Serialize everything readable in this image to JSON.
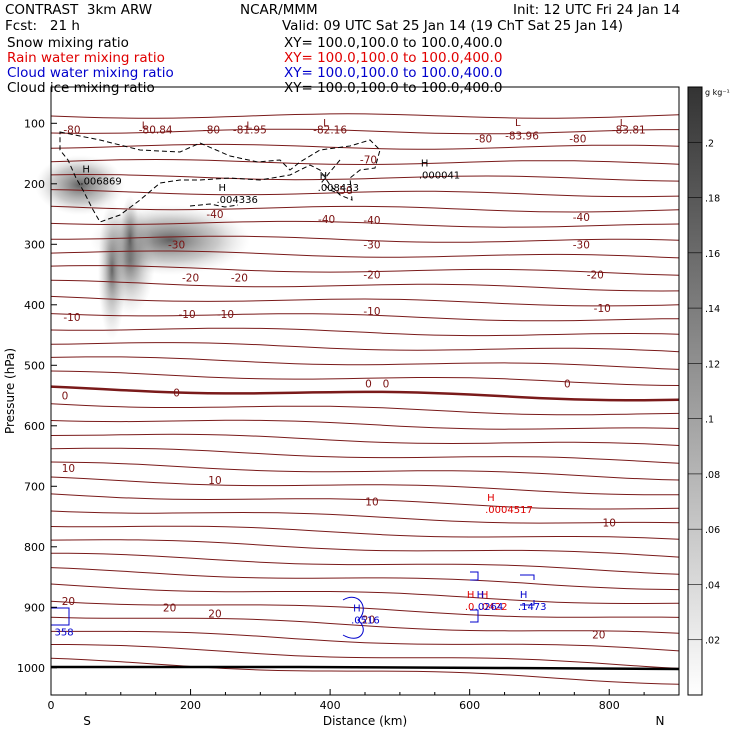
{
  "header": {
    "title_left": "CONTRAST  3km ARW",
    "center": "NCAR/MMM",
    "init": "Init: 12 UTC Fri 24 Jan 14",
    "fcst": "Fcst:   21 h",
    "valid": "Valid: 09 UTC Sat 25 Jan 14 (19 ChT Sat 25 Jan 14)",
    "fields": [
      {
        "label": "Snow mixing ratio",
        "xy": "XY= 100.0,100.0 to 100.0,400.0",
        "color": "#000000"
      },
      {
        "label": "Rain water mixing ratio",
        "xy": "XY= 100.0,100.0 to 100.0,400.0",
        "color": "#e00000"
      },
      {
        "label": "Cloud water mixing ratio",
        "xy": "XY= 100.0,100.0 to 100.0,400.0",
        "color": "#0000cc"
      },
      {
        "label": "Cloud ice mixing ratio",
        "xy": "XY= 100.0,100.0 to 100.0,400.0",
        "color": "#000000"
      }
    ]
  },
  "chart_data": {
    "type": "contour",
    "xlabel": "Distance (km)",
    "ylabel": "Pressure (hPa)",
    "xlim": [
      0,
      900
    ],
    "ylim": [
      1045,
      40
    ],
    "x_ticks": [
      0,
      200,
      400,
      600,
      800
    ],
    "y_ticks": [
      100,
      200,
      300,
      400,
      500,
      600,
      700,
      800,
      900,
      1000
    ],
    "x_end_labels": {
      "left": "S",
      "right": "N"
    },
    "colorbar": {
      "unit": "g kg⁻¹",
      "ticks": [
        ".02",
        ".04",
        ".06",
        ".08",
        ".1",
        ".12",
        ".14",
        ".16",
        ".18",
        ".2"
      ]
    },
    "temperature_labels": [
      {
        "x": 30,
        "p": 110,
        "text": "-80"
      },
      {
        "x": 150,
        "p": 110,
        "text": "-80.84"
      },
      {
        "x": 230,
        "p": 110,
        "text": "-80"
      },
      {
        "x": 285,
        "p": 110,
        "text": "-81.95"
      },
      {
        "x": 400,
        "p": 110,
        "text": "-82.16"
      },
      {
        "x": 620,
        "p": 125,
        "text": "-80"
      },
      {
        "x": 675,
        "p": 120,
        "text": "-83.96"
      },
      {
        "x": 755,
        "p": 125,
        "text": "-80"
      },
      {
        "x": 828,
        "p": 110,
        "text": "-83.81"
      },
      {
        "x": 455,
        "p": 160,
        "text": "-70"
      },
      {
        "x": 420,
        "p": 210,
        "text": "-50"
      },
      {
        "x": 235,
        "p": 250,
        "text": "-40"
      },
      {
        "x": 395,
        "p": 258,
        "text": "-40"
      },
      {
        "x": 460,
        "p": 260,
        "text": "-40"
      },
      {
        "x": 760,
        "p": 255,
        "text": "-40"
      },
      {
        "x": 180,
        "p": 300,
        "text": "-30"
      },
      {
        "x": 460,
        "p": 300,
        "text": "-30"
      },
      {
        "x": 760,
        "p": 300,
        "text": "-30"
      },
      {
        "x": 200,
        "p": 355,
        "text": "-20"
      },
      {
        "x": 270,
        "p": 355,
        "text": "-20"
      },
      {
        "x": 460,
        "p": 350,
        "text": "-20"
      },
      {
        "x": 780,
        "p": 350,
        "text": "-20"
      },
      {
        "x": 30,
        "p": 420,
        "text": "-10"
      },
      {
        "x": 195,
        "p": 415,
        "text": "-10"
      },
      {
        "x": 250,
        "p": 415,
        "text": "-10"
      },
      {
        "x": 460,
        "p": 410,
        "text": "-10"
      },
      {
        "x": 790,
        "p": 405,
        "text": "-10"
      },
      {
        "x": 20,
        "p": 550,
        "text": "0"
      },
      {
        "x": 180,
        "p": 545,
        "text": "0"
      },
      {
        "x": 455,
        "p": 530,
        "text": "0"
      },
      {
        "x": 480,
        "p": 530,
        "text": "0"
      },
      {
        "x": 740,
        "p": 530,
        "text": "0"
      },
      {
        "x": 25,
        "p": 670,
        "text": "10"
      },
      {
        "x": 235,
        "p": 690,
        "text": "10"
      },
      {
        "x": 460,
        "p": 725,
        "text": "10"
      },
      {
        "x": 800,
        "p": 760,
        "text": "10"
      },
      {
        "x": 25,
        "p": 890,
        "text": "20"
      },
      {
        "x": 170,
        "p": 900,
        "text": "20"
      },
      {
        "x": 235,
        "p": 910,
        "text": "20"
      },
      {
        "x": 455,
        "p": 920,
        "text": "20"
      },
      {
        "x": 785,
        "p": 945,
        "text": "20"
      }
    ],
    "extrema": [
      {
        "x": 130,
        "p": 112,
        "type": "L",
        "text": "",
        "color": "#7a1111"
      },
      {
        "x": 280,
        "p": 112,
        "type": "L",
        "text": "",
        "color": "#7a1111"
      },
      {
        "x": 390,
        "p": 108,
        "type": "L",
        "text": "",
        "color": "#7a1111"
      },
      {
        "x": 665,
        "p": 108,
        "type": "L",
        "text": "",
        "color": "#7a1111"
      },
      {
        "x": 815,
        "p": 108,
        "type": "L",
        "text": "",
        "color": "#7a1111"
      },
      {
        "x": 45,
        "p": 185,
        "type": "H",
        "text": ".006869",
        "color": "#000000"
      },
      {
        "x": 240,
        "p": 215,
        "type": "H",
        "text": ".004336",
        "color": "#000000"
      },
      {
        "x": 385,
        "p": 195,
        "type": "H",
        "text": ".008433",
        "color": "#000000"
      },
      {
        "x": 530,
        "p": 175,
        "type": "H",
        "text": ".000041",
        "color": "#000000"
      },
      {
        "x": 625,
        "p": 728,
        "type": "H",
        "text": ".0004517",
        "color": "#e00000"
      },
      {
        "x": 596,
        "p": 888,
        "type": "H",
        "text": ".0",
        "color": "#e00000"
      },
      {
        "x": 616,
        "p": 888,
        "type": "H",
        "text": ".0422",
        "color": "#e00000"
      },
      {
        "x": 610,
        "p": 888,
        "type": "H",
        "text": ".0264",
        "color": "#0000cc"
      },
      {
        "x": 672,
        "p": 888,
        "type": "H",
        "text": ".1473",
        "color": "#0000cc"
      },
      {
        "x": 433,
        "p": 910,
        "type": "H",
        "text": ".0516",
        "color": "#0000cc"
      },
      {
        "x": 5,
        "p": 930,
        "type": "",
        "text": "358",
        "color": "#0000cc"
      }
    ]
  }
}
